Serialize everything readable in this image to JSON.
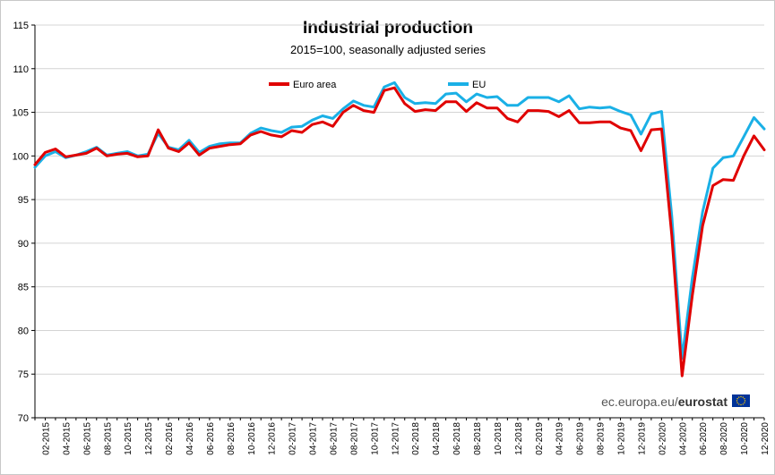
{
  "chart_data": {
    "type": "line",
    "title": "Industrial production",
    "subtitle": "2015=100, seasonally adjusted series",
    "xlabel": "",
    "ylabel": "",
    "ylim": [
      70,
      115
    ],
    "yticks": [
      70,
      75,
      80,
      85,
      90,
      95,
      100,
      105,
      110,
      115
    ],
    "grid": true,
    "legend_position": "top-center",
    "x": [
      "01-2015",
      "02-2015",
      "03-2015",
      "04-2015",
      "05-2015",
      "06-2015",
      "07-2015",
      "08-2015",
      "09-2015",
      "10-2015",
      "11-2015",
      "12-2015",
      "01-2016",
      "02-2016",
      "03-2016",
      "04-2016",
      "05-2016",
      "06-2016",
      "07-2016",
      "08-2016",
      "09-2016",
      "10-2016",
      "11-2016",
      "12-2016",
      "01-2017",
      "02-2017",
      "03-2017",
      "04-2017",
      "05-2017",
      "06-2017",
      "07-2017",
      "08-2017",
      "09-2017",
      "10-2017",
      "11-2017",
      "12-2017",
      "01-2018",
      "02-2018",
      "03-2018",
      "04-2018",
      "05-2018",
      "06-2018",
      "07-2018",
      "08-2018",
      "09-2018",
      "10-2018",
      "11-2018",
      "12-2018",
      "01-2019",
      "02-2019",
      "03-2019",
      "04-2019",
      "05-2019",
      "06-2019",
      "07-2019",
      "08-2019",
      "09-2019",
      "10-2019",
      "11-2019",
      "12-2019",
      "01-2020",
      "02-2020",
      "03-2020",
      "04-2020",
      "05-2020",
      "06-2020",
      "07-2020",
      "08-2020",
      "09-2020",
      "10-2020",
      "11-2020",
      "12-2020"
    ],
    "xtick_labels": [
      "02-2015",
      "04-2015",
      "06-2015",
      "08-2015",
      "10-2015",
      "12-2015",
      "02-2016",
      "04-2016",
      "06-2016",
      "08-2016",
      "10-2016",
      "12-2016",
      "02-2017",
      "04-2017",
      "06-2017",
      "08-2017",
      "10-2017",
      "12-2017",
      "02-2018",
      "04-2018",
      "06-2018",
      "08-2018",
      "10-2018",
      "12-2018",
      "02-2019",
      "04-2019",
      "06-2019",
      "08-2019",
      "10-2019",
      "12-2019",
      "02-2020",
      "04-2020",
      "06-2020",
      "08-2020",
      "10-2020",
      "12-2020"
    ],
    "series": [
      {
        "name": "Euro area",
        "color": "#e00000",
        "values": [
          99.0,
          100.4,
          100.8,
          99.9,
          100.1,
          100.3,
          100.9,
          100.0,
          100.2,
          100.3,
          99.9,
          100.0,
          103.0,
          100.9,
          100.5,
          101.5,
          100.1,
          100.9,
          101.1,
          101.3,
          101.4,
          102.4,
          102.8,
          102.4,
          102.2,
          102.9,
          102.7,
          103.6,
          103.9,
          103.4,
          105.0,
          105.8,
          105.2,
          105.0,
          107.5,
          107.8,
          106.0,
          105.1,
          105.3,
          105.2,
          106.2,
          106.2,
          105.1,
          106.1,
          105.5,
          105.5,
          104.3,
          103.9,
          105.2,
          105.2,
          105.1,
          104.5,
          105.2,
          103.8,
          103.8,
          103.9,
          103.9,
          103.2,
          102.9,
          100.6,
          103.0,
          103.1,
          90.9,
          74.8,
          84.0,
          92.0,
          96.6,
          97.3,
          97.2,
          100.0,
          102.3,
          100.7
        ]
      },
      {
        "name": "EU",
        "color": "#1ab0e6",
        "values": [
          98.7,
          100.0,
          100.5,
          99.8,
          100.1,
          100.5,
          101.0,
          100.1,
          100.3,
          100.5,
          100.0,
          100.2,
          102.6,
          101.0,
          100.7,
          101.8,
          100.4,
          101.1,
          101.4,
          101.5,
          101.5,
          102.6,
          103.2,
          102.9,
          102.7,
          103.3,
          103.4,
          104.1,
          104.6,
          104.3,
          105.4,
          106.3,
          105.8,
          105.6,
          107.9,
          108.4,
          106.7,
          106.0,
          106.1,
          106.0,
          107.1,
          107.2,
          106.2,
          107.1,
          106.7,
          106.8,
          105.8,
          105.8,
          106.7,
          106.7,
          106.7,
          106.2,
          106.9,
          105.4,
          105.6,
          105.5,
          105.6,
          105.1,
          104.7,
          102.5,
          104.8,
          105.1,
          93.1,
          76.8,
          86.0,
          93.6,
          98.6,
          99.8,
          100.0,
          102.2,
          104.4,
          103.1
        ]
      }
    ]
  },
  "branding": {
    "site": "ec.europa.eu/",
    "name": "eurostat"
  }
}
